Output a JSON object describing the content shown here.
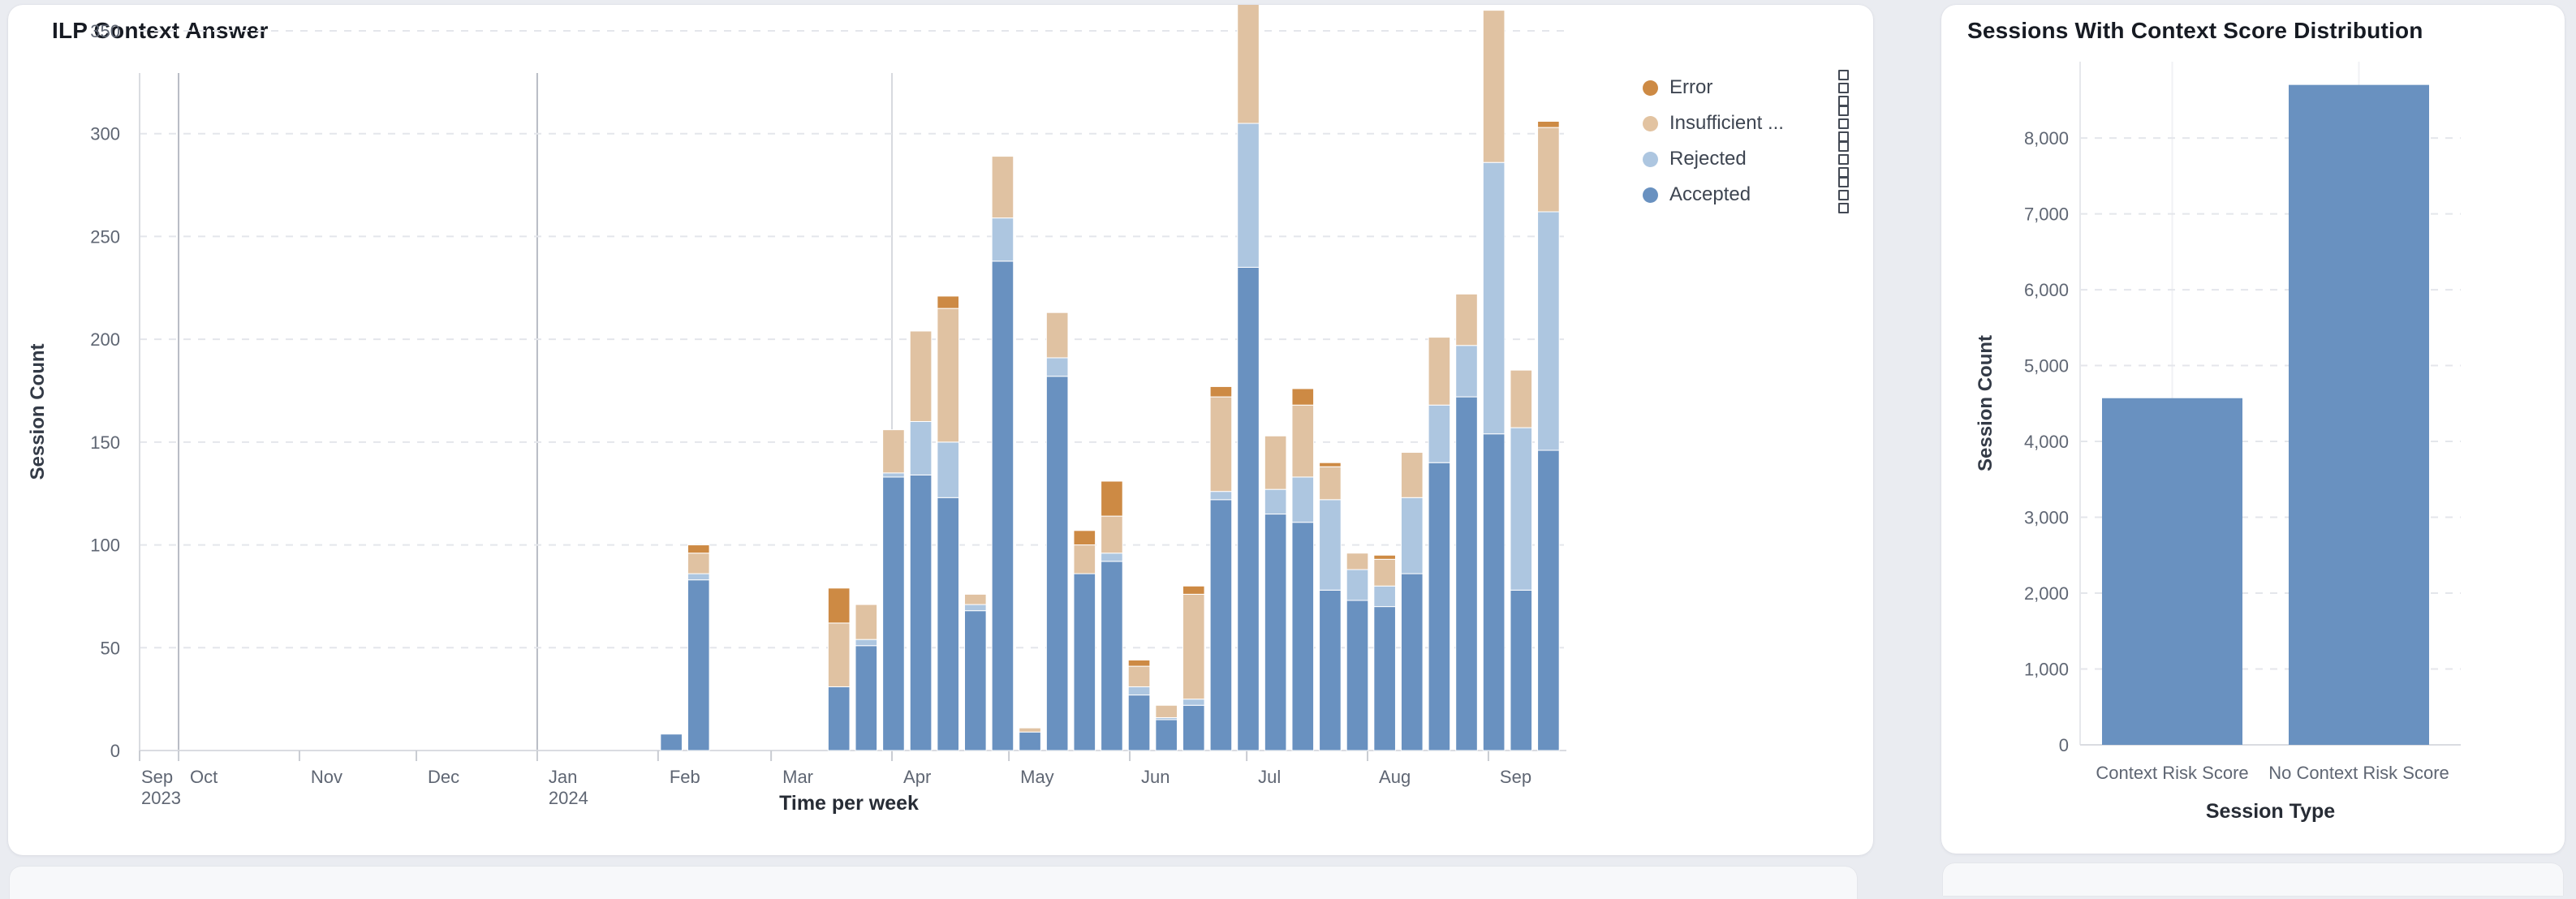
{
  "page": {
    "background_color": "#eaecf1",
    "card_color": "#ffffff"
  },
  "chart_data": [
    {
      "type": "bar",
      "stacked": true,
      "title": "ILP Context Answer",
      "xlabel": "Time per week",
      "ylabel": "Session Count",
      "ylim": [
        0,
        350
      ],
      "yticks": [
        0,
        50,
        100,
        150,
        200,
        250,
        300,
        350
      ],
      "grid": "dashed-horizontal",
      "legend_position": "top-right",
      "legend": [
        {
          "label": "Error",
          "color": "#cd8a44"
        },
        {
          "label": "Insufficient ...",
          "color": "#e2c3a1"
        },
        {
          "label": "Rejected",
          "color": "#adc6e0"
        },
        {
          "label": "Accepted",
          "color": "#6991c0"
        }
      ],
      "series_colors": {
        "accepted": "#6991c0",
        "rejected": "#adc6e0",
        "insufficient": "#e0c2a2",
        "error": "#cd8a44"
      },
      "x_axis": {
        "kind": "time",
        "span_days": 366,
        "months": [
          {
            "label": "Sep",
            "sub": "2023",
            "day": 0
          },
          {
            "label": "Oct",
            "day": 10
          },
          {
            "label": "Nov",
            "day": 41
          },
          {
            "label": "Dec",
            "day": 71
          },
          {
            "label": "Jan",
            "sub": "2024",
            "day": 102
          },
          {
            "label": "Feb",
            "day": 133
          },
          {
            "label": "Mar",
            "day": 162
          },
          {
            "label": "Apr",
            "day": 193
          },
          {
            "label": "May",
            "day": 223
          },
          {
            "label": "Jun",
            "day": 254
          },
          {
            "label": "Jul",
            "day": 284
          },
          {
            "label": "Aug",
            "day": 315
          },
          {
            "label": "Sep",
            "day": 346
          }
        ],
        "quarter_lines": [
          {
            "day": 10,
            "strong": true
          },
          {
            "day": 102,
            "strong": true
          },
          {
            "day": 193,
            "strong": false
          },
          {
            "day": 284,
            "strong": false
          }
        ]
      },
      "bars": [
        {
          "week": "Feb 1",
          "day": 133,
          "accepted": 8,
          "rejected": 0,
          "insufficient": 0,
          "error": 0
        },
        {
          "week": "Feb 8",
          "day": 140,
          "accepted": 83,
          "rejected": 3,
          "insufficient": 10,
          "error": 4
        },
        {
          "week": "Mar 15",
          "day": 176,
          "accepted": 31,
          "rejected": 0,
          "insufficient": 31,
          "error": 17
        },
        {
          "week": "Mar 22",
          "day": 183,
          "accepted": 51,
          "rejected": 3,
          "insufficient": 17,
          "error": 0
        },
        {
          "week": "Mar 29",
          "day": 190,
          "accepted": 133,
          "rejected": 2,
          "insufficient": 21,
          "error": 0
        },
        {
          "week": "Apr 5",
          "day": 197,
          "accepted": 134,
          "rejected": 26,
          "insufficient": 44,
          "error": 0
        },
        {
          "week": "Apr 12",
          "day": 204,
          "accepted": 123,
          "rejected": 27,
          "insufficient": 65,
          "error": 6
        },
        {
          "week": "Apr 19",
          "day": 211,
          "accepted": 68,
          "rejected": 3,
          "insufficient": 5,
          "error": 0
        },
        {
          "week": "Apr 26",
          "day": 218,
          "accepted": 238,
          "rejected": 21,
          "insufficient": 30,
          "error": 0
        },
        {
          "week": "May 3",
          "day": 225,
          "accepted": 9,
          "rejected": 0,
          "insufficient": 2,
          "error": 0
        },
        {
          "week": "May 10",
          "day": 232,
          "accepted": 182,
          "rejected": 9,
          "insufficient": 22,
          "error": 0
        },
        {
          "week": "May 17",
          "day": 239,
          "accepted": 86,
          "rejected": 0,
          "insufficient": 14,
          "error": 7
        },
        {
          "week": "May 24",
          "day": 246,
          "accepted": 92,
          "rejected": 4,
          "insufficient": 18,
          "error": 17
        },
        {
          "week": "May 31",
          "day": 253,
          "accepted": 27,
          "rejected": 4,
          "insufficient": 10,
          "error": 3
        },
        {
          "week": "Jun 7",
          "day": 260,
          "accepted": 15,
          "rejected": 1,
          "insufficient": 6,
          "error": 0
        },
        {
          "week": "Jun 14",
          "day": 267,
          "accepted": 22,
          "rejected": 3,
          "insufficient": 51,
          "error": 4
        },
        {
          "week": "Jun 21",
          "day": 274,
          "accepted": 122,
          "rejected": 4,
          "insufficient": 46,
          "error": 5
        },
        {
          "week": "Jun 28",
          "day": 281,
          "accepted": 235,
          "rejected": 70,
          "insufficient": 63,
          "error": 0
        },
        {
          "week": "Jul 5",
          "day": 288,
          "accepted": 115,
          "rejected": 12,
          "insufficient": 26,
          "error": 0
        },
        {
          "week": "Jul 12",
          "day": 295,
          "accepted": 111,
          "rejected": 22,
          "insufficient": 35,
          "error": 8
        },
        {
          "week": "Jul 19",
          "day": 302,
          "accepted": 78,
          "rejected": 44,
          "insufficient": 16,
          "error": 2
        },
        {
          "week": "Jul 26",
          "day": 309,
          "accepted": 73,
          "rejected": 15,
          "insufficient": 8,
          "error": 0
        },
        {
          "week": "Aug 2",
          "day": 316,
          "accepted": 70,
          "rejected": 10,
          "insufficient": 13,
          "error": 2
        },
        {
          "week": "Aug 9",
          "day": 323,
          "accepted": 86,
          "rejected": 37,
          "insufficient": 22,
          "error": 0
        },
        {
          "week": "Aug 16",
          "day": 330,
          "accepted": 140,
          "rejected": 28,
          "insufficient": 33,
          "error": 0
        },
        {
          "week": "Aug 23",
          "day": 337,
          "accepted": 172,
          "rejected": 25,
          "insufficient": 25,
          "error": 0
        },
        {
          "week": "Aug 30",
          "day": 344,
          "accepted": 154,
          "rejected": 132,
          "insufficient": 74,
          "error": 0
        },
        {
          "week": "Sep 6",
          "day": 351,
          "accepted": 78,
          "rejected": 79,
          "insufficient": 28,
          "error": 0
        },
        {
          "week": "Sep 13",
          "day": 358,
          "accepted": 146,
          "rejected": 116,
          "insufficient": 41,
          "error": 3
        }
      ]
    },
    {
      "type": "bar",
      "title": "Sessions With Context Score Distribution",
      "xlabel": "Session Type",
      "ylabel": "Session Count",
      "ylim": [
        0,
        9000
      ],
      "ytick_labels": [
        "0",
        "1,000",
        "2,000",
        "3,000",
        "4,000",
        "5,000",
        "6,000",
        "7,000",
        "8,000"
      ],
      "grid": "dashed-horizontal",
      "categories": [
        "Context Risk Score",
        "No Context Risk Score"
      ],
      "values": [
        4570,
        8700
      ],
      "bar_color": "#6991c0"
    }
  ],
  "style": {
    "tick_text_color": "#5f6673",
    "axis_name_color": "#333a46",
    "gridline_color": "#e4e6eb",
    "axis_line_color": "#dadce1",
    "quarter_line_strong": "#b8bcc5",
    "quarter_line_weak": "#d7d9de",
    "month_tick_color": "#c9ccd2"
  }
}
